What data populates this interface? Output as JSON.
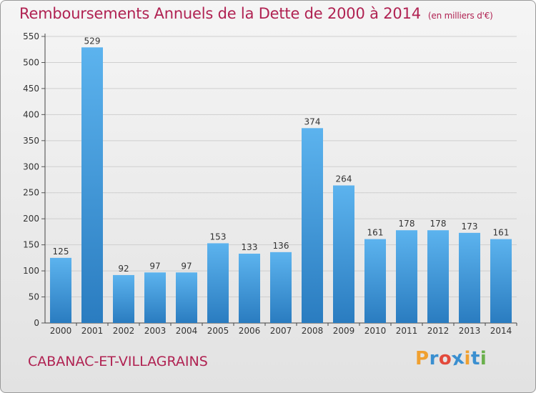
{
  "header": {
    "title": "Remboursements Annuels de la Dette de 2000 à 2014",
    "unit": "(en milliers d'€)"
  },
  "footer": {
    "commune": "CABANAC-ET-VILLAGRAINS"
  },
  "logo": {
    "letters": [
      "P",
      "r",
      "o",
      "x",
      "i",
      "t",
      "i"
    ],
    "colors": [
      "#f0a030",
      "#3a8fd0",
      "#e34a3c",
      "#3a8fd0",
      "#f0a030",
      "#3a8fd0",
      "#6ab04c"
    ]
  },
  "colors": {
    "bar_light": "#5cb3ee",
    "bar_dark": "#2a7cc0",
    "title": "#b02252"
  },
  "chart_data": {
    "type": "bar",
    "categories": [
      "2000",
      "2001",
      "2002",
      "2003",
      "2004",
      "2005",
      "2006",
      "2007",
      "2008",
      "2009",
      "2010",
      "2011",
      "2012",
      "2013",
      "2014"
    ],
    "values": [
      125,
      529,
      92,
      97,
      97,
      153,
      133,
      136,
      374,
      264,
      161,
      178,
      178,
      173,
      161
    ],
    "ylim": [
      0,
      550
    ],
    "yticks": [
      0,
      50,
      100,
      150,
      200,
      250,
      300,
      350,
      400,
      450,
      500,
      550
    ],
    "grid": "horizontal",
    "data_labels": true
  }
}
